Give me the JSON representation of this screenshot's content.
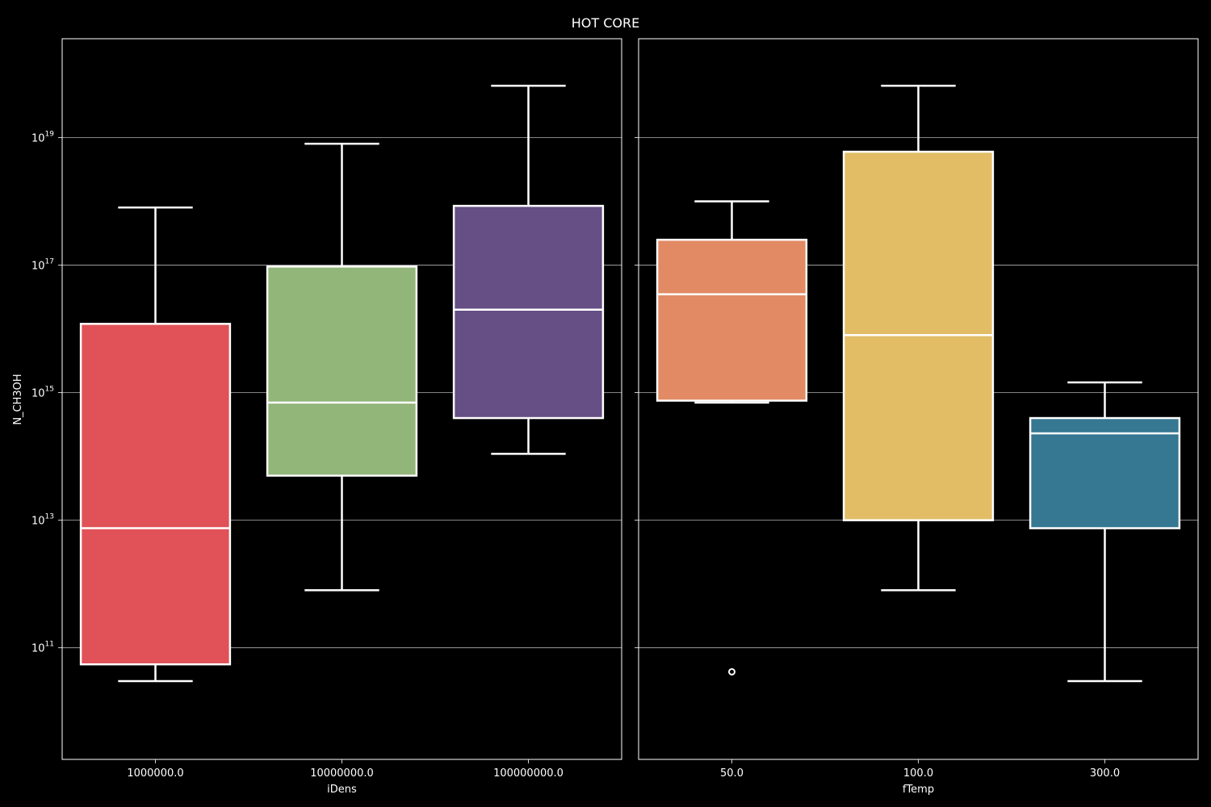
{
  "chart_data": {
    "type": "box",
    "title": "HOT CORE",
    "ylabel": "N_CH3OH",
    "yscale": "log",
    "ylim_log10": [
      9.25,
      20.55
    ],
    "yticks": [
      {
        "base": "10",
        "exp": "11",
        "value": 100000000000.0
      },
      {
        "base": "10",
        "exp": "13",
        "value": 10000000000000.0
      },
      {
        "base": "10",
        "exp": "15",
        "value": 1000000000000000.0
      },
      {
        "base": "10",
        "exp": "17",
        "value": 1e+17
      },
      {
        "base": "10",
        "exp": "19",
        "value": 1e+19
      }
    ],
    "grid": "horizontal",
    "panels": [
      {
        "xlabel": "iDens",
        "categories": [
          "1000000.0",
          "10000000.0",
          "100000000.0"
        ],
        "boxes": [
          {
            "category": "1000000.0",
            "color": "#e05257",
            "whisker_low": 30000000000.0,
            "q1": 55000000000.0,
            "median": 7500000000000.0,
            "q3": 1.2e+16,
            "whisker_high": 8e+17,
            "outliers": []
          },
          {
            "category": "10000000.0",
            "color": "#92b579",
            "whisker_low": 800000000000.0,
            "q1": 50000000000000.0,
            "median": 700000000000000.0,
            "q3": 9.5e+16,
            "whisker_high": 8e+18,
            "outliers": []
          },
          {
            "category": "100000000.0",
            "color": "#654f84",
            "whisker_low": 110000000000000.0,
            "q1": 400000000000000.0,
            "median": 2e+16,
            "q3": 8.5e+17,
            "whisker_high": 6.5e+19,
            "outliers": []
          }
        ]
      },
      {
        "xlabel": "fTemp",
        "categories": [
          "50.0",
          "100.0",
          "300.0"
        ],
        "boxes": [
          {
            "category": "50.0",
            "color": "#e28a64",
            "whisker_low": 700000000000000.0,
            "q1": 750000000000000.0,
            "median": 3.5e+16,
            "q3": 2.5e+17,
            "whisker_high": 1e+18,
            "outliers": [
              42000000000.0
            ]
          },
          {
            "category": "100.0",
            "color": "#e2bd66",
            "whisker_low": 800000000000.0,
            "q1": 10000000000000.0,
            "median": 8000000000000000.0,
            "q3": 6e+18,
            "whisker_high": 6.5e+19,
            "outliers": []
          },
          {
            "category": "300.0",
            "color": "#367792",
            "whisker_low": 30000000000.0,
            "q1": 7500000000000.0,
            "median": 230000000000000.0,
            "q3": 400000000000000.0,
            "whisker_high": 1450000000000000.0,
            "outliers": []
          }
        ]
      }
    ]
  }
}
